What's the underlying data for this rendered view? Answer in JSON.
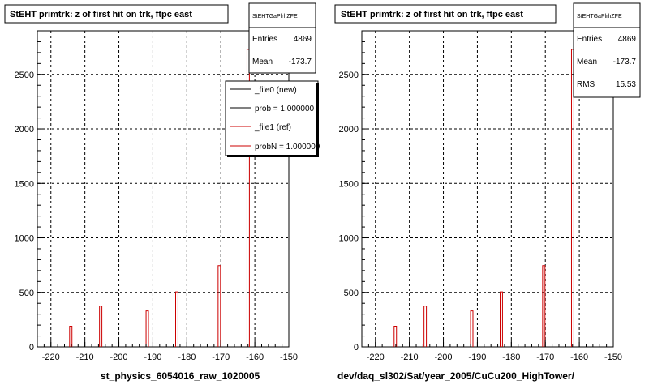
{
  "panels": [
    {
      "title": "StEHT primtrk: z of first hit on trk, ftpc east",
      "stats": {
        "name": "StEHTGaPlrhZFE",
        "rows": [
          [
            "Entries",
            "4869"
          ],
          [
            "Mean",
            "-173.7"
          ]
        ]
      },
      "legend": [
        {
          "label": "_file0 (new)",
          "color": "#000000"
        },
        {
          "label": "prob = 1.000000",
          "color": "#000000"
        },
        {
          "label": "_file1 (ref)",
          "color": "#cc0000"
        },
        {
          "label": "probN = 1.000000",
          "color": "#cc0000"
        }
      ],
      "xlabel": "st_physics_6054016_raw_1020005"
    },
    {
      "title": "StEHT primtrk: z of first hit on trk, ftpc east",
      "stats": {
        "name": "StEHTGaPlrhZFE",
        "rows": [
          [
            "Entries",
            "4869"
          ],
          [
            "Mean",
            "-173.7"
          ],
          [
            "RMS",
            "15.53"
          ]
        ]
      },
      "legend": [],
      "xlabel": "dev/daq_sl302/Sat/year_2005/CuCu200_HighTower/"
    }
  ],
  "chart_data": [
    {
      "type": "bar",
      "title": "StEHT primtrk: z of first hit on trk, ftpc east",
      "xlabel": "st_physics_6054016_raw_1020005",
      "ylabel": "",
      "xlim": [
        -224,
        -150
      ],
      "ylim": [
        0,
        2900
      ],
      "xticks": [
        -220,
        -210,
        -200,
        -190,
        -180,
        -170,
        -160,
        -150
      ],
      "yticks": [
        0,
        500,
        1000,
        1500,
        2000,
        2500
      ],
      "grid": true,
      "series": [
        {
          "name": "_file1 (ref)",
          "color": "#cc0000",
          "bins": [
            {
              "x0": -214.5,
              "x1": -213.8,
              "y": 190
            },
            {
              "x0": -205.7,
              "x1": -205.0,
              "y": 375
            },
            {
              "x0": -192.0,
              "x1": -191.3,
              "y": 330
            },
            {
              "x0": -183.3,
              "x1": -182.6,
              "y": 505
            },
            {
              "x0": -170.8,
              "x1": -170.1,
              "y": 745
            },
            {
              "x0": -162.3,
              "x1": -161.6,
              "y": 2730
            }
          ]
        }
      ]
    },
    {
      "type": "bar",
      "title": "StEHT primtrk: z of first hit on trk, ftpc east",
      "xlabel": "dev/daq_sl302/Sat/year_2005/CuCu200_HighTower/",
      "ylabel": "",
      "xlim": [
        -224,
        -150
      ],
      "ylim": [
        0,
        2900
      ],
      "xticks": [
        -220,
        -210,
        -200,
        -190,
        -180,
        -170,
        -160,
        -150
      ],
      "yticks": [
        0,
        500,
        1000,
        1500,
        2000,
        2500
      ],
      "grid": true,
      "series": [
        {
          "color": "#cc0000",
          "bins": [
            {
              "x0": -214.5,
              "x1": -213.8,
              "y": 190
            },
            {
              "x0": -205.7,
              "x1": -205.0,
              "y": 375
            },
            {
              "x0": -192.0,
              "x1": -191.3,
              "y": 330
            },
            {
              "x0": -183.3,
              "x1": -182.6,
              "y": 505
            },
            {
              "x0": -170.8,
              "x1": -170.1,
              "y": 745
            },
            {
              "x0": -162.3,
              "x1": -161.6,
              "y": 2730
            }
          ]
        }
      ]
    }
  ]
}
